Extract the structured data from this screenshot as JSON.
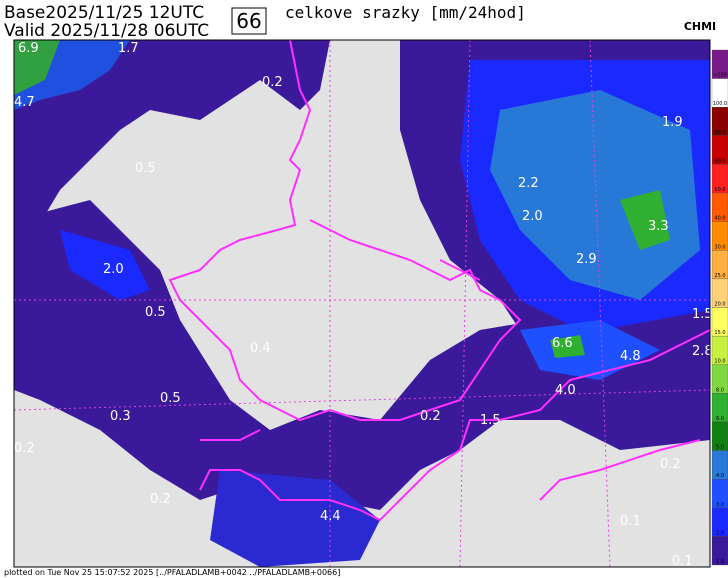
{
  "header": {
    "base": "Base2025/11/25 12UTC",
    "valid": "Valid 2025/11/28 06UTC",
    "step": "66",
    "title": "celkove srazky [mm/24hod]",
    "logo": "CHMI"
  },
  "map": {
    "labels": [
      "6.9",
      "1.7",
      "4.7",
      "0.2",
      "0.5",
      "1.9",
      "2.2",
      "2.0",
      "3.3",
      "2.0",
      "2.9",
      "0.5",
      "1.5",
      "6.6",
      "4.8",
      "2.8",
      "0.4",
      "0.3",
      "0.5",
      "0.2",
      "4.0",
      "1.5",
      "0.2",
      "0.2",
      "0.2",
      "4.4",
      "0.1",
      "0.1"
    ]
  },
  "legend": {
    "items": [
      {
        "label": ">150",
        "color": "#7a1a8a"
      },
      {
        "label": "100.0",
        "color": "#ffffff"
      },
      {
        "label": "80.0",
        "color": "#8b0000"
      },
      {
        "label": "60.0",
        "color": "#c80000"
      },
      {
        "label": "50.0",
        "color": "#ff2020"
      },
      {
        "label": "40.0",
        "color": "#ff5a00"
      },
      {
        "label": "30.0",
        "color": "#ff8c00"
      },
      {
        "label": "25.0",
        "color": "#ffb040"
      },
      {
        "label": "20.0",
        "color": "#ffd27a"
      },
      {
        "label": "15.0",
        "color": "#ffff60"
      },
      {
        "label": "10.0",
        "color": "#c8f040"
      },
      {
        "label": "8.0",
        "color": "#80d840"
      },
      {
        "label": "6.0",
        "color": "#30b030"
      },
      {
        "label": "5.0",
        "color": "#108010"
      },
      {
        "label": "4.0",
        "color": "#2878d8"
      },
      {
        "label": "3.0",
        "color": "#1e50ff"
      },
      {
        "label": "2.0",
        "color": "#1a2aff"
      },
      {
        "label": "1.0",
        "color": "#3a1a9a"
      }
    ]
  },
  "footer": "plotted on Tue Nov 25 15:07:52 2025 [../PFALADLAMB+0042 ../PFALADLAMB+0066]"
}
